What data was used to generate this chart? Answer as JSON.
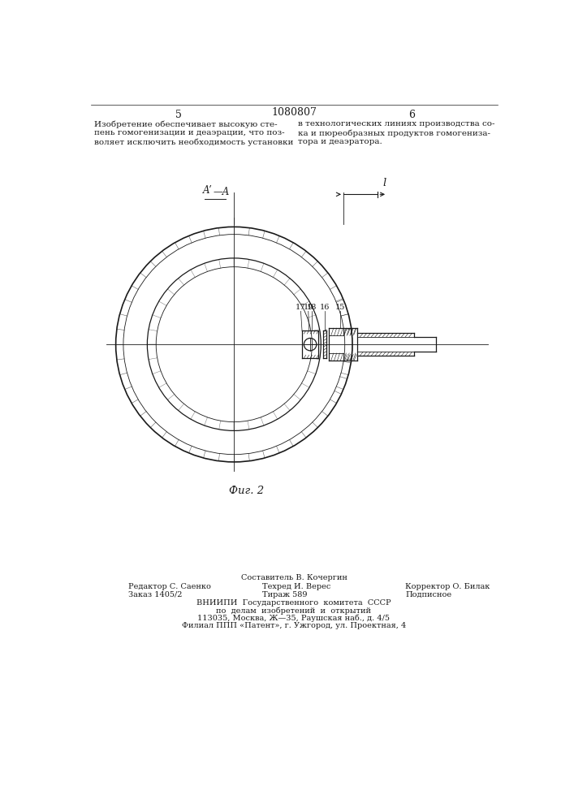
{
  "page_number_left": "5",
  "page_number_right": "6",
  "patent_number": "1080807",
  "section_label": "Aʹ—A",
  "dim_label": "l",
  "fig_label": "Фиг. 2",
  "footer_compositor": "Составитель В. Кочергин",
  "footer_editor": "Редактор С. Саенко",
  "footer_tech": "Техред И. Верес",
  "footer_corrector": "Корректор О. Билак",
  "footer_order": "Заказ 1405/2",
  "footer_tirazh": "Тираж 589",
  "footer_podpisnoe": "Подписное",
  "footer_vniip1": "ВНИИПИ  Государственного  комитета  СССР",
  "footer_vniip2": "по  делам  изобретений  и  открытий",
  "footer_addr": "113035, Москва, Ж—35, Раушская наб., д. 4/5",
  "footer_filial": "Филиал ППП «Патент», г. Ужгород, ул. Проектная, 4",
  "bg_color": "#ffffff",
  "line_color": "#1a1a1a"
}
